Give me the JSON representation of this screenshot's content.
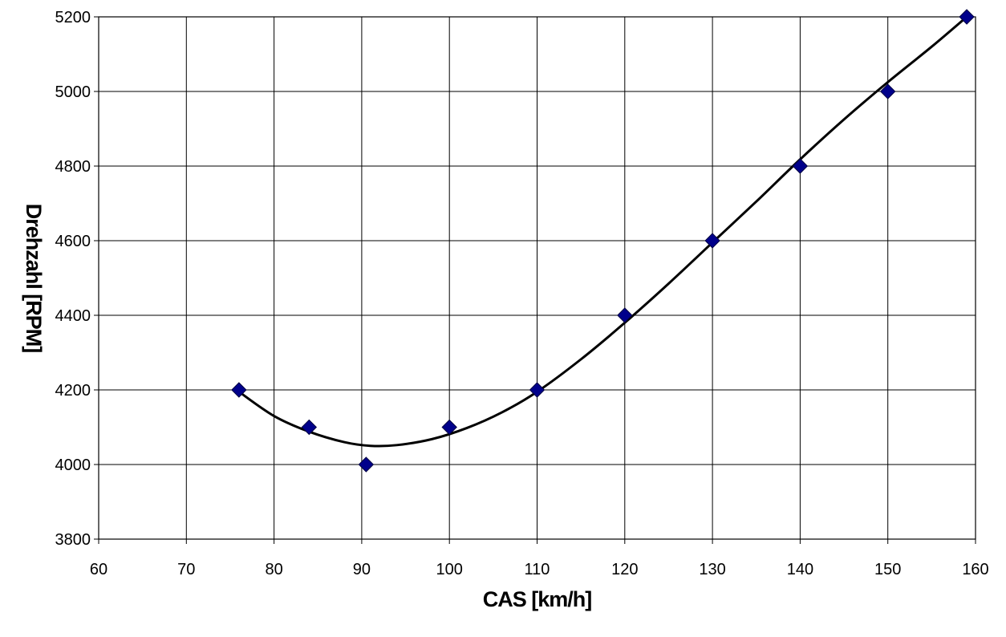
{
  "chart_data": {
    "type": "scatter",
    "title": "",
    "xlabel": "CAS [km/h]",
    "ylabel": "Drehzahl [RPM]",
    "xlim": [
      60,
      160
    ],
    "ylim": [
      3800,
      5200
    ],
    "x_ticks": [
      "60",
      "70",
      "80",
      "90",
      "100",
      "110",
      "120",
      "130",
      "140",
      "150",
      "160"
    ],
    "y_ticks": [
      "3800",
      "4000",
      "4200",
      "4400",
      "4600",
      "4800",
      "5000",
      "5200"
    ],
    "grid": true,
    "legend": "none",
    "series": [
      {
        "marker": "diamond",
        "color": "#00008B",
        "x": [
          76,
          84,
          90.5,
          100,
          110,
          120,
          130,
          140,
          150,
          159
        ],
        "y": [
          4200,
          4100,
          4000,
          4100,
          4200,
          4400,
          4600,
          4800,
          5000,
          5200
        ]
      }
    ],
    "trendline": {
      "type": "smooth",
      "color": "#000000",
      "x": [
        76,
        80,
        84,
        88,
        91,
        94,
        98,
        102,
        106,
        110,
        115,
        120,
        125,
        130,
        135,
        140,
        145,
        150,
        155,
        159
      ],
      "y": [
        4195,
        4130,
        4088,
        4060,
        4050,
        4052,
        4068,
        4098,
        4140,
        4195,
        4282,
        4380,
        4485,
        4595,
        4705,
        4818,
        4925,
        5025,
        5120,
        5200
      ]
    }
  }
}
